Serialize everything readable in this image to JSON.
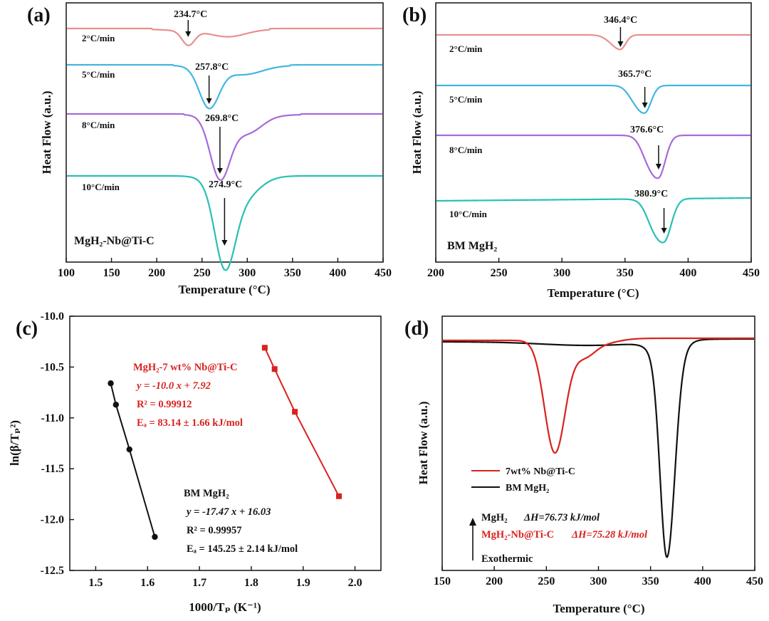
{
  "colors": {
    "rate2": "#e8908e",
    "rate5": "#41b6df",
    "rate8": "#a86ad8",
    "rate10": "#28c0b4",
    "red": "#d8221f",
    "black": "#111111"
  },
  "chart_data": [
    {
      "panel": "(a)",
      "type": "line",
      "title": "",
      "xlabel": "Temperature (°C)",
      "ylabel": "Heat Flow (a.u.)",
      "xlim": [
        100,
        450
      ],
      "xticks": [
        "100",
        "150",
        "200",
        "250",
        "300",
        "350",
        "400",
        "450"
      ],
      "sample": "MgH₂-Nb@Ti-C",
      "series": [
        {
          "name": "2°C/min",
          "peak_label": "234.7°C",
          "peak": 234.7,
          "color_key": "rate2"
        },
        {
          "name": "5°C/min",
          "peak_label": "257.8°C",
          "peak": 257.8,
          "color_key": "rate5"
        },
        {
          "name": "8°C/min",
          "peak_label": "269.8°C",
          "peak": 269.8,
          "color_key": "rate8"
        },
        {
          "name": "10°C/min",
          "peak_label": "274.9°C",
          "peak": 274.9,
          "color_key": "rate10"
        }
      ]
    },
    {
      "panel": "(b)",
      "type": "line",
      "title": "",
      "xlabel": "Temperature (°C)",
      "ylabel": "Heat Flow (a.u.)",
      "xlim": [
        200,
        450
      ],
      "xticks": [
        "200",
        "250",
        "300",
        "350",
        "400",
        "450"
      ],
      "sample": "BM MgH₂",
      "series": [
        {
          "name": "2°C/min",
          "peak_label": "346.4°C",
          "peak": 346.4,
          "color_key": "rate2"
        },
        {
          "name": "5°C/min",
          "peak_label": "365.7°C",
          "peak": 365.7,
          "color_key": "rate5"
        },
        {
          "name": "8°C/min",
          "peak_label": "376.6°C",
          "peak": 376.6,
          "color_key": "rate8"
        },
        {
          "name": "10°C/min",
          "peak_label": "380.9°C",
          "peak": 380.9,
          "color_key": "rate10"
        }
      ]
    },
    {
      "panel": "(c)",
      "type": "scatter",
      "title": "",
      "xlabel": "1000/Tₚ (K⁻¹)",
      "ylabel": "ln(β/Tₚ²)",
      "xlim": [
        1.45,
        2.05
      ],
      "ylim": [
        -12.5,
        -10.0
      ],
      "xticks": [
        "1.5",
        "1.6",
        "1.7",
        "1.8",
        "1.9",
        "2.0"
      ],
      "yticks": [
        "-10.0",
        "-10.5",
        "-11.0",
        "-11.5",
        "-12.0",
        "-12.5"
      ],
      "series": [
        {
          "name": "MgH₂-7 wt% Nb@Ti-C",
          "color_key": "red",
          "marker": "square",
          "x": [
            1.826,
            1.845,
            1.884,
            1.969
          ],
          "y": [
            -10.31,
            -10.52,
            -10.94,
            -11.77
          ],
          "equation": "y = -10.0 x + 7.92",
          "r2": "R² = 0.99912",
          "ea": "Eₐ = 83.14 ± 1.66 kJ/mol"
        },
        {
          "name": "BM MgH₂",
          "color_key": "black",
          "marker": "circle",
          "x": [
            1.529,
            1.539,
            1.565,
            1.614
          ],
          "y": [
            -10.66,
            -10.87,
            -11.31,
            -12.17
          ],
          "equation": "y = -17.47 x + 16.03",
          "r2": "R² = 0.99957",
          "ea": "Eₐ = 145.25 ± 2.14 kJ/mol"
        }
      ]
    },
    {
      "panel": "(d)",
      "type": "line",
      "title": "",
      "xlabel": "Temperature (°C)",
      "ylabel": "Heat Flow (a.u.)",
      "xlim": [
        150,
        450
      ],
      "xticks": [
        "150",
        "200",
        "250",
        "300",
        "350",
        "400",
        "450"
      ],
      "legend": [
        "7wt% Nb@Ti-C",
        "BM MgH₂"
      ],
      "series": [
        {
          "name": "7wt% Nb@Ti-C",
          "color_key": "red",
          "peak": 258
        },
        {
          "name": "BM MgH₂",
          "color_key": "black",
          "peak": 366
        }
      ],
      "enthalpy": [
        {
          "label": "MgH₂",
          "value": "ΔH=76.73 kJ/mol",
          "color_key": "black"
        },
        {
          "label": "MgH₂-Nb@Ti-C",
          "value": "ΔH=75.28 kJ/mol",
          "color_key": "red"
        }
      ],
      "arrow_label": "Exothermic"
    }
  ]
}
